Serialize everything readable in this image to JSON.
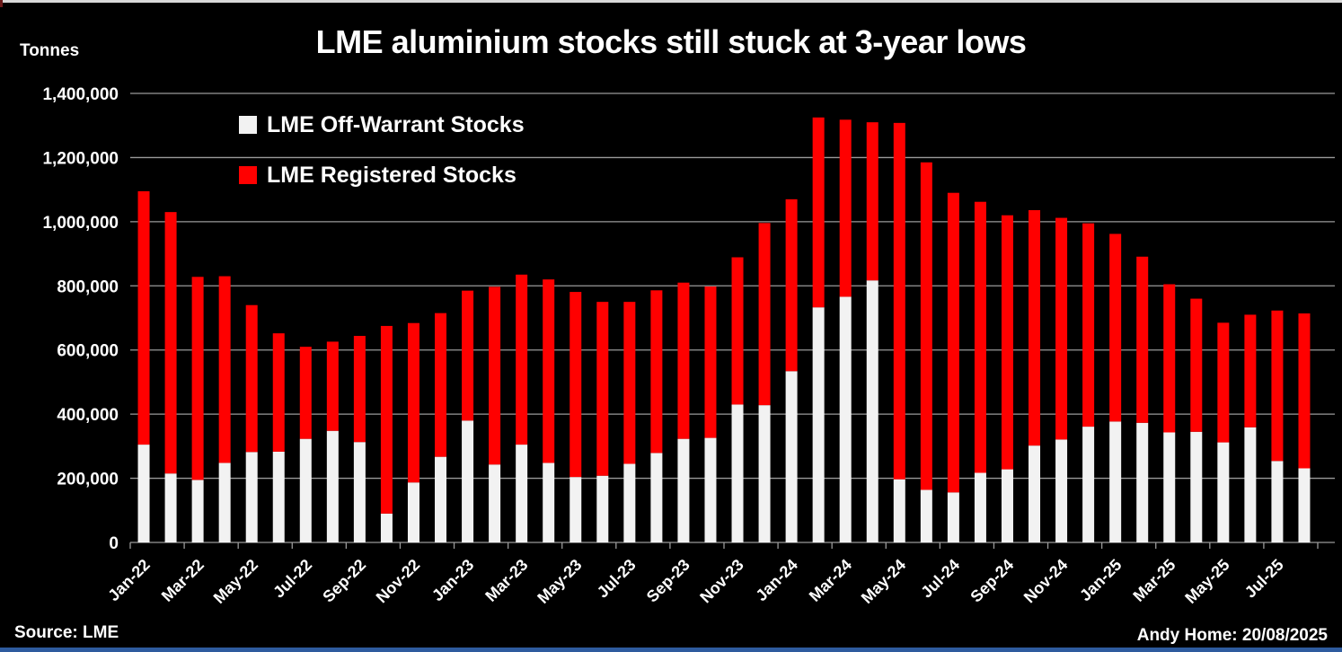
{
  "header": {
    "units_label": "Tonnes",
    "title": "LME aluminium stocks still stuck at 3-year lows"
  },
  "footer": {
    "source": "Source: LME",
    "attribution": "Andy Home: 20/08/2025"
  },
  "legend": [
    {
      "label": "LME Off-Warrant Stocks",
      "color": "#f2f2f2"
    },
    {
      "label": "LME Registered Stocks",
      "color": "#ff0000"
    }
  ],
  "colors": {
    "background": "#000000",
    "grid": "#9a9a9a",
    "text": "#ffffff",
    "footer_bar": "#2e5b9e",
    "top_strip": "#d9d9d9"
  },
  "chart_data": {
    "type": "bar",
    "stacked": true,
    "title": "LME aluminium stocks still stuck at 3-year lows",
    "xlabel": "",
    "ylabel": "Tonnes",
    "ylim": [
      0,
      1400000
    ],
    "y_tick_step": 200000,
    "y_tick_labels": [
      "0",
      "200,000",
      "400,000",
      "600,000",
      "800,000",
      "1,000,000",
      "1,200,000",
      "1,400,000"
    ],
    "grid": true,
    "legend_position": "top-left-inside",
    "x_label_every": 2,
    "categories": [
      "Jan-22",
      "Feb-22",
      "Mar-22",
      "Apr-22",
      "May-22",
      "Jun-22",
      "Jul-22",
      "Aug-22",
      "Sep-22",
      "Oct-22",
      "Nov-22",
      "Dec-22",
      "Jan-23",
      "Feb-23",
      "Mar-23",
      "Apr-23",
      "May-23",
      "Jun-23",
      "Jul-23",
      "Aug-23",
      "Sep-23",
      "Oct-23",
      "Nov-23",
      "Dec-23",
      "Jan-24",
      "Feb-24",
      "Mar-24",
      "Apr-24",
      "May-24",
      "Jun-24",
      "Jul-24",
      "Aug-24",
      "Sep-24",
      "Oct-24",
      "Nov-24",
      "Dec-24",
      "Jan-25",
      "Feb-25",
      "Mar-25",
      "Apr-25",
      "May-25",
      "Jun-25",
      "Jul-25",
      "Aug-25"
    ],
    "series": [
      {
        "name": "LME Off-Warrant Stocks",
        "color": "#f2f2f2",
        "values": [
          305000,
          215000,
          195000,
          248000,
          282000,
          283000,
          323000,
          348000,
          313000,
          90000,
          187000,
          267000,
          380000,
          243000,
          305000,
          248000,
          204000,
          208000,
          245000,
          279000,
          323000,
          326000,
          430000,
          428000,
          534000,
          733000,
          766000,
          817000,
          197000,
          164000,
          156000,
          217000,
          228000,
          302000,
          321000,
          361000,
          377000,
          373000,
          343000,
          345000,
          312000,
          359000,
          254000,
          231000
        ]
      },
      {
        "name": "LME Registered Stocks",
        "color": "#ff0000",
        "values": [
          790000,
          815000,
          633000,
          582000,
          458000,
          369000,
          287000,
          278000,
          331000,
          585000,
          497000,
          448000,
          405000,
          554000,
          530000,
          572000,
          577000,
          542000,
          505000,
          507000,
          487000,
          472000,
          459000,
          568000,
          536000,
          592000,
          552000,
          493000,
          1111000,
          1021000,
          934000,
          845000,
          792000,
          734000,
          691000,
          634000,
          585000,
          518000,
          462000,
          415000,
          373000,
          351000,
          469000,
          483000
        ]
      }
    ]
  }
}
